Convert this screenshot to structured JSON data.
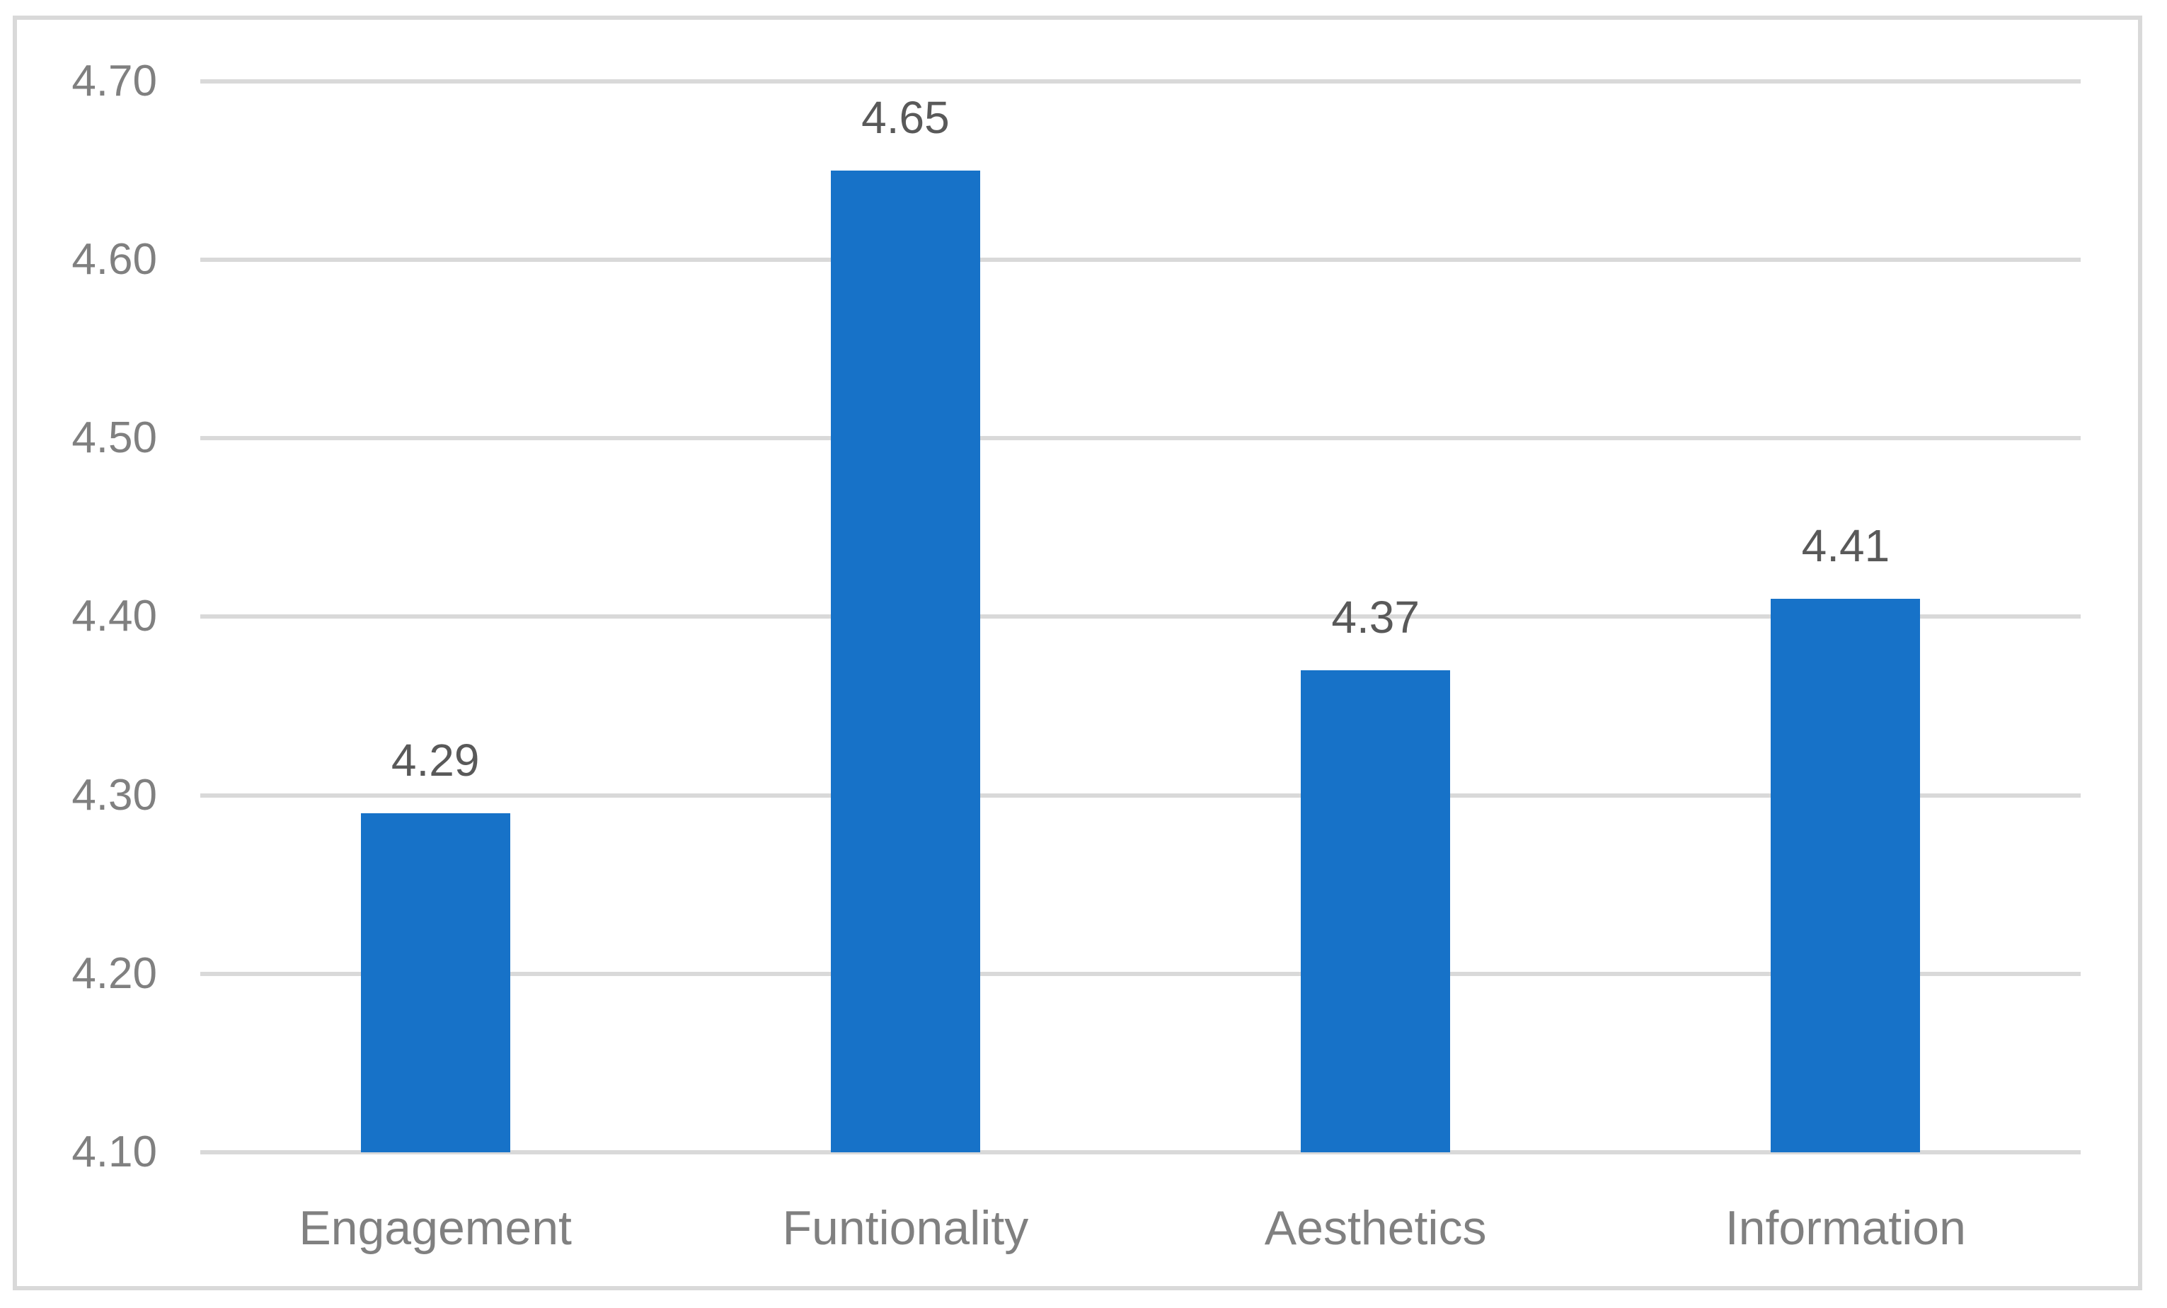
{
  "chart_data": {
    "type": "bar",
    "title": "",
    "xlabel": "",
    "ylabel": "",
    "categories": [
      "Engagement",
      "Funtionality",
      "Aesthetics",
      "Information"
    ],
    "values": [
      4.29,
      4.65,
      4.37,
      4.41
    ],
    "data_labels": [
      "4.29",
      "4.65",
      "4.37",
      "4.41"
    ],
    "yticks": [
      {
        "value": 4.7,
        "label": "4.70"
      },
      {
        "value": 4.6,
        "label": "4.60"
      },
      {
        "value": 4.5,
        "label": "4.50"
      },
      {
        "value": 4.4,
        "label": "4.40"
      },
      {
        "value": 4.3,
        "label": "4.30"
      },
      {
        "value": 4.2,
        "label": "4.20"
      },
      {
        "value": 4.1,
        "label": "4.10"
      }
    ],
    "ylim": [
      4.1,
      4.7
    ],
    "grid": true,
    "legend": false,
    "colors": {
      "bar": "#1772C8",
      "gridline": "#D9D9D9",
      "frame_border": "#D9D9D9",
      "axis_label_text": "#808080",
      "data_label_text": "#595959",
      "background": "#FFFFFF"
    }
  }
}
